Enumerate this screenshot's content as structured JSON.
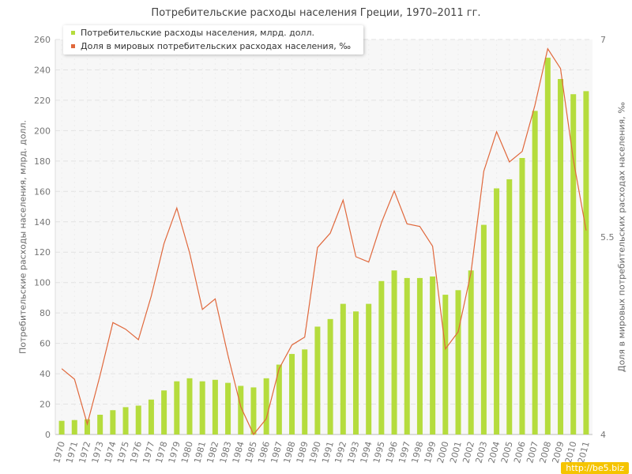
{
  "chart_data": {
    "type": "bar+line",
    "title": "Потребительские расходы населения Греции, 1970–2011 гг.",
    "ylabel": "Потребительские расходы населения, млрд. долл.",
    "y2label": "Доля в мировых потребительских расходах населения, ‰",
    "ylim": [
      0,
      260
    ],
    "y2lim": [
      4,
      7
    ],
    "yticks": [
      0,
      20,
      40,
      60,
      80,
      100,
      120,
      140,
      160,
      180,
      200,
      220,
      240,
      260
    ],
    "y2ticks": [
      4,
      5.5,
      7
    ],
    "categories": [
      "1970",
      "1971",
      "1972",
      "1973",
      "1974",
      "1975",
      "1976",
      "1977",
      "1978",
      "1979",
      "1980",
      "1981",
      "1982",
      "1983",
      "1984",
      "1985",
      "1986",
      "1987",
      "1988",
      "1989",
      "1990",
      "1991",
      "1992",
      "1993",
      "1994",
      "1995",
      "1996",
      "1997",
      "1998",
      "1999",
      "2000",
      "2001",
      "2002",
      "2003",
      "2004",
      "2005",
      "2006",
      "2007",
      "2008",
      "2009",
      "2010",
      "2011"
    ],
    "series": [
      {
        "name": "Потребительские расходы населения, млрд. долл.",
        "type": "bar",
        "axis": "left",
        "color": "#b5dc3d",
        "values": [
          9,
          9.5,
          10,
          13,
          16,
          18,
          19,
          23,
          29,
          35,
          37,
          35,
          36,
          34,
          32,
          31,
          37,
          46,
          53,
          56,
          71,
          76,
          86,
          81,
          86,
          101,
          108,
          103,
          103,
          104,
          92,
          95,
          108,
          138,
          162,
          168,
          182,
          213,
          248,
          234,
          224,
          226
        ]
      },
      {
        "name": "Доля в мировых потребительских расходах населения, ‰",
        "type": "line",
        "axis": "right",
        "color": "#e0683c",
        "values": [
          4.5,
          4.42,
          4.08,
          4.45,
          4.85,
          4.8,
          4.72,
          5.05,
          5.45,
          5.72,
          5.38,
          4.95,
          5.03,
          4.6,
          4.21,
          4.0,
          4.12,
          4.5,
          4.68,
          4.74,
          5.42,
          5.53,
          5.78,
          5.35,
          5.31,
          5.61,
          5.85,
          5.6,
          5.58,
          5.43,
          4.65,
          4.78,
          5.23,
          6.0,
          6.3,
          6.07,
          6.15,
          6.5,
          6.93,
          6.78,
          6.09,
          5.55
        ]
      }
    ],
    "grid": true,
    "legend": "top-left"
  },
  "watermark": "http://be5.biz"
}
